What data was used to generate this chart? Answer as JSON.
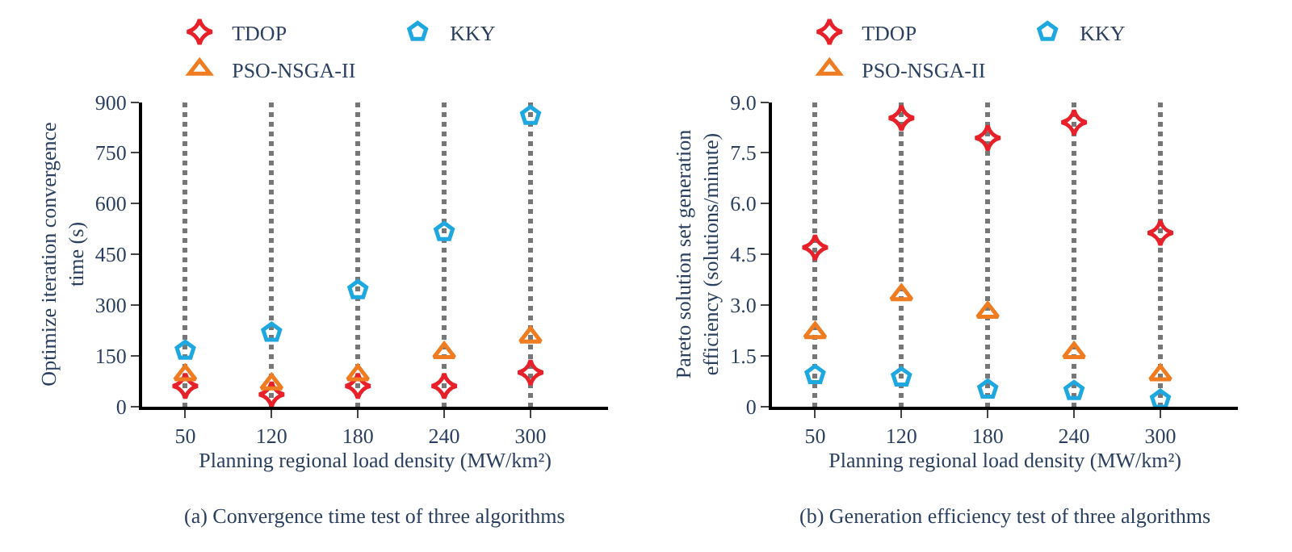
{
  "chart_data": [
    {
      "type": "scatter",
      "categories": [
        "50",
        "120",
        "180",
        "240",
        "300"
      ],
      "xlabel": "Planning regional load density (MW/km²)",
      "ylabel": "Optimize iteration convergence time (s)",
      "ylim": [
        0,
        900
      ],
      "yticks": [
        0,
        150,
        300,
        450,
        600,
        750,
        900
      ],
      "grid": "x",
      "legend": "top",
      "annotations": [
        "(a) Convergence time test of three algorithms"
      ],
      "series": [
        {
          "name": "TDOP",
          "color": "#e8202a",
          "marker": "star",
          "values": [
            60,
            35,
            60,
            60,
            100
          ]
        },
        {
          "name": "KKY",
          "color": "#1fa8e0",
          "values": [
            165,
            218,
            344,
            516,
            860
          ]
        },
        {
          "name": "PSO-NSGA-II",
          "color": "#f07c22",
          "marker": "triangle",
          "values": [
            93,
            66,
            93,
            159,
            205
          ]
        }
      ]
    },
    {
      "type": "scatter",
      "categories": [
        "50",
        "120",
        "180",
        "240",
        "300"
      ],
      "xlabel": "Planning regional load density (MW/km²)",
      "ylabel": "Pareto solution set generation efficiency (solutions/minute)",
      "ylim": [
        0,
        9
      ],
      "yticks": [
        {
          "value": 0,
          "label": "0"
        },
        {
          "value": 1.5,
          "label": "1.5"
        },
        {
          "value": 3,
          "label": "3.0"
        },
        {
          "value": 4.5,
          "label": "4.5"
        },
        {
          "value": 6,
          "label": "6.0"
        },
        {
          "value": 7.5,
          "label": "7.5"
        },
        {
          "value": 9,
          "label": "9.0"
        }
      ],
      "grid": "x",
      "legend": "top",
      "annotations": [
        "(b) Generation efficiency test of three algorithms"
      ],
      "series": [
        {
          "name": "TDOP",
          "color": "#e8202a",
          "marker": "star",
          "values": [
            4.7,
            8.53,
            7.94,
            8.4,
            5.13
          ]
        },
        {
          "name": "KKY",
          "color": "#1fa8e0",
          "values": [
            0.93,
            0.86,
            0.5,
            0.46,
            0.2
          ]
        },
        {
          "name": "PSO-NSGA-II",
          "color": "#f07c22",
          "marker": "triangle",
          "values": [
            2.18,
            3.3,
            2.78,
            1.59,
            0.93
          ]
        }
      ]
    }
  ]
}
